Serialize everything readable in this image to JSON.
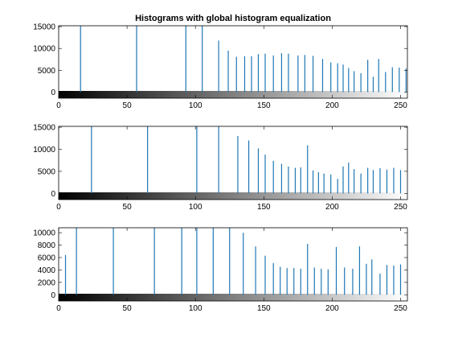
{
  "figure": {
    "title": "Histograms with global histogram equalization"
  },
  "chart_data": [
    {
      "type": "bar",
      "xlim": [
        0,
        255
      ],
      "ylim": [
        -1400,
        15200
      ],
      "xticks": [
        0,
        50,
        100,
        150,
        200,
        250
      ],
      "yticks": [
        0,
        5000,
        10000,
        15000
      ],
      "tick_labels_x": [
        "0",
        "50",
        "100",
        "150",
        "200",
        "250"
      ],
      "tick_labels_y": [
        "0",
        "5000",
        "10000",
        "15000"
      ],
      "colorbar": "grayscale gradient 0 to 255 below axis",
      "stem_color": "#1f77b4",
      "x": [
        16,
        57,
        93,
        105,
        117,
        124,
        130,
        136,
        141,
        146,
        151,
        157,
        163,
        168,
        175,
        180,
        186,
        193,
        199,
        204,
        208,
        212,
        216,
        221,
        226,
        230,
        234,
        239,
        244,
        249,
        254
      ],
      "values": [
        16000,
        16000,
        16000,
        16000,
        11800,
        9500,
        8100,
        8200,
        8200,
        8700,
        8800,
        8400,
        8900,
        8800,
        8400,
        8500,
        8300,
        7600,
        6800,
        6600,
        6300,
        5500,
        4800,
        4300,
        7400,
        3500,
        7600,
        4600,
        5700,
        5600,
        5400
      ]
    },
    {
      "type": "bar",
      "xlim": [
        0,
        255
      ],
      "ylim": [
        -1400,
        15200
      ],
      "xticks": [
        0,
        50,
        100,
        150,
        200,
        250
      ],
      "yticks": [
        0,
        5000,
        10000,
        15000
      ],
      "tick_labels_x": [
        "0",
        "50",
        "100",
        "150",
        "200",
        "250"
      ],
      "tick_labels_y": [
        "0",
        "5000",
        "10000",
        "15000"
      ],
      "colorbar": "grayscale gradient 0 to 255 below axis",
      "stem_color": "#1f77b4",
      "x": [
        24,
        65,
        101,
        117,
        131,
        139,
        146,
        151,
        157,
        163,
        168,
        173,
        177,
        182,
        186,
        190,
        194,
        199,
        204,
        208,
        212,
        216,
        221,
        226,
        230,
        235,
        240,
        245,
        250
      ],
      "values": [
        16000,
        16000,
        16000,
        16000,
        13000,
        12000,
        10200,
        8800,
        7400,
        6700,
        6100,
        5800,
        5900,
        10900,
        5200,
        4800,
        4500,
        4300,
        3300,
        6100,
        7000,
        5500,
        4500,
        5800,
        5300,
        5700,
        5400,
        5800,
        5300
      ]
    },
    {
      "type": "bar",
      "xlim": [
        0,
        255
      ],
      "ylim": [
        -1000,
        10800
      ],
      "xticks": [
        0,
        50,
        100,
        150,
        200,
        250
      ],
      "yticks": [
        0,
        2000,
        4000,
        6000,
        8000,
        10000
      ],
      "tick_labels_x": [
        "0",
        "50",
        "100",
        "150",
        "200",
        "250"
      ],
      "tick_labels_y": [
        "0",
        "2000",
        "4000",
        "6000",
        "8000",
        "10000"
      ],
      "colorbar": "grayscale gradient 0 to 255 below axis",
      "stem_color": "#1f77b4",
      "x": [
        5,
        13,
        40,
        70,
        90,
        101,
        113,
        125,
        135,
        144,
        151,
        157,
        162,
        167,
        172,
        177,
        182,
        187,
        192,
        197,
        203,
        209,
        215,
        220,
        225,
        229,
        235,
        240,
        245,
        250
      ],
      "values": [
        6400,
        11000,
        11000,
        11000,
        11000,
        11000,
        11000,
        11000,
        10000,
        7800,
        6300,
        5100,
        4500,
        4300,
        4300,
        4200,
        8200,
        4400,
        4200,
        4100,
        7700,
        4400,
        4200,
        7800,
        5000,
        5700,
        3400,
        4800,
        4700,
        4900
      ]
    }
  ]
}
